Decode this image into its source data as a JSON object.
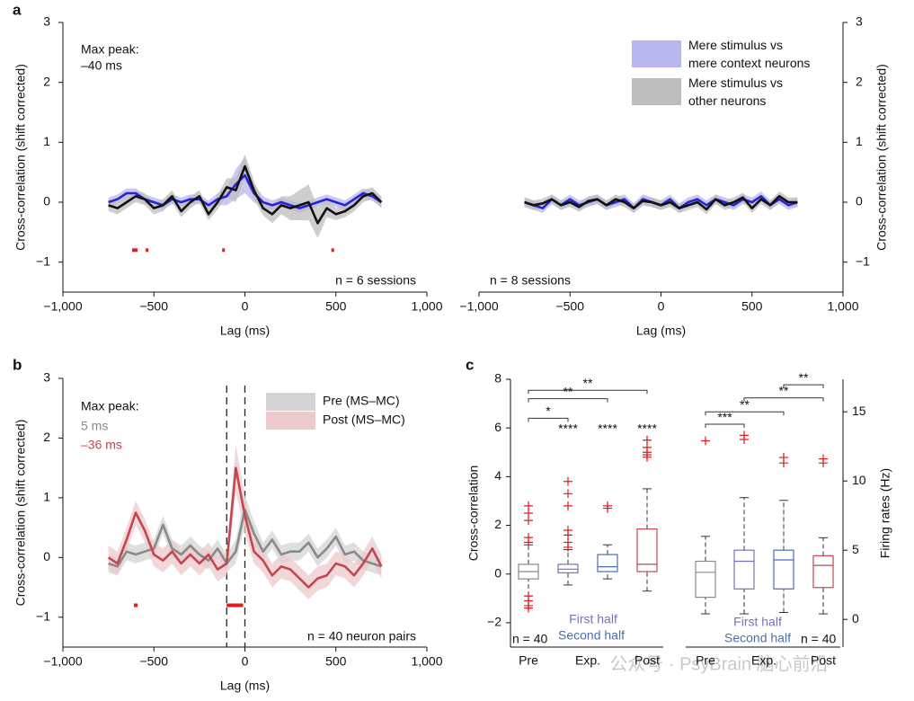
{
  "chart_data": [
    {
      "type": "line",
      "panel": "a",
      "x": [
        -750,
        -700,
        -650,
        -600,
        -550,
        -500,
        -450,
        -400,
        -350,
        -300,
        -250,
        -200,
        -150,
        -100,
        -50,
        0,
        50,
        100,
        150,
        200,
        250,
        300,
        350,
        400,
        450,
        500,
        550,
        600,
        650,
        700,
        750
      ],
      "xlim": [
        -1000,
        1000
      ],
      "xticks": [
        {
          "value": -1000,
          "label": "−1,000"
        },
        {
          "value": -500,
          "label": "−500"
        },
        0,
        500,
        {
          "value": 1000,
          "label": "1,000"
        }
      ],
      "ylim": [
        -1.5,
        3
      ],
      "yticks": [
        {
          "value": -1,
          "label": "−1"
        },
        0,
        1,
        2,
        3
      ],
      "y_axis_side": "left",
      "xlabel": "Lag (ms)",
      "ylabel": "Cross-correlation (shift corrected)",
      "series": [
        {
          "name": "Mere stimulus vs mere context neurons",
          "color": "#2424d8",
          "band_color": "#b8b8ee",
          "values": [
            0,
            0.05,
            0.15,
            0.15,
            0.05,
            0,
            -0.05,
            0.05,
            0,
            0.05,
            0.05,
            -0.05,
            0.05,
            0.1,
            0.3,
            0.45,
            0.15,
            0,
            -0.05,
            0,
            -0.05,
            -0.1,
            -0.05,
            0,
            0.05,
            0,
            -0.05,
            0.05,
            0.15,
            0.1,
            0
          ],
          "errors": [
            0.08,
            0.08,
            0.08,
            0.08,
            0.08,
            0.08,
            0.08,
            0.08,
            0.08,
            0.08,
            0.08,
            0.08,
            0.1,
            0.15,
            0.25,
            0.3,
            0.15,
            0.1,
            0.08,
            0.08,
            0.08,
            0.08,
            0.08,
            0.08,
            0.08,
            0.08,
            0.08,
            0.08,
            0.08,
            0.08,
            0.08
          ]
        },
        {
          "name": "Mere stimulus vs other neurons",
          "color": "#111111",
          "band_color": "#bdbdbd",
          "values": [
            -0.05,
            -0.1,
            0,
            0.1,
            0.05,
            -0.1,
            -0.05,
            0.1,
            -0.15,
            0,
            0.1,
            -0.2,
            0,
            0.25,
            0.2,
            0.6,
            0.2,
            -0.1,
            -0.2,
            -0.05,
            -0.1,
            -0.05,
            0,
            -0.35,
            -0.1,
            -0.2,
            -0.15,
            -0.05,
            0.1,
            0.15,
            0
          ],
          "errors": [
            0.1,
            0.1,
            0.1,
            0.1,
            0.1,
            0.1,
            0.1,
            0.1,
            0.1,
            0.1,
            0.1,
            0.1,
            0.12,
            0.15,
            0.2,
            0.2,
            0.15,
            0.12,
            0.15,
            0.15,
            0.2,
            0.25,
            0.3,
            0.25,
            0.15,
            0.1,
            0.1,
            0.1,
            0.1,
            0.1,
            0.1
          ]
        }
      ],
      "significance_y": -0.8,
      "significant_ranges": [
        [
          -620,
          -590
        ],
        [
          -545,
          -535
        ],
        [
          -125,
          -115
        ],
        [
          475,
          485
        ]
      ],
      "annotations": [
        {
          "text": "Max peak:"
        },
        {
          "text": "–40 ms"
        },
        {
          "text": "n = 6 sessions"
        }
      ]
    },
    {
      "type": "line",
      "x": [
        -750,
        -700,
        -650,
        -600,
        -550,
        -500,
        -450,
        -400,
        -350,
        -300,
        -250,
        -200,
        -150,
        -100,
        -50,
        0,
        50,
        100,
        150,
        200,
        250,
        300,
        350,
        400,
        450,
        500,
        550,
        600,
        650,
        700,
        750
      ],
      "xlim": [
        -1000,
        1000
      ],
      "xticks": [
        {
          "value": -1000,
          "label": "−1,000"
        },
        {
          "value": -500,
          "label": "−500"
        },
        0,
        500,
        {
          "value": 1000,
          "label": "1,000"
        }
      ],
      "ylim": [
        -1.5,
        3
      ],
      "yticks": [
        {
          "value": -1,
          "label": "−1"
        },
        0,
        1,
        2,
        3
      ],
      "y_axis_side": "right",
      "xlabel": "Lag (ms)",
      "ylabel": "Cross-correlation (shift corrected)",
      "series": [
        {
          "color": "#2424d8",
          "band_color": "#b8b8ee",
          "values": [
            0,
            -0.05,
            -0.1,
            0.05,
            -0.05,
            0.05,
            -0.05,
            0,
            0.05,
            -0.05,
            0,
            0.05,
            -0.1,
            0.05,
            0,
            -0.05,
            0.05,
            -0.1,
            0,
            0.05,
            -0.05,
            0.05,
            0,
            -0.05,
            0.05,
            0,
            0.1,
            -0.05,
            0.05,
            -0.05,
            0
          ],
          "errors": [
            0.08,
            0.08,
            0.08,
            0.08,
            0.08,
            0.08,
            0.08,
            0.08,
            0.08,
            0.08,
            0.08,
            0.08,
            0.08,
            0.08,
            0.08,
            0.08,
            0.08,
            0.08,
            0.08,
            0.08,
            0.08,
            0.08,
            0.08,
            0.08,
            0.08,
            0.08,
            0.08,
            0.08,
            0.08,
            0.08,
            0.08
          ]
        },
        {
          "color": "#111111",
          "band_color": "#bdbdbd",
          "values": [
            0,
            -0.05,
            -0.02,
            0.05,
            -0.05,
            0,
            -0.08,
            0.02,
            0.05,
            -0.05,
            0.05,
            0,
            -0.1,
            0.02,
            0,
            -0.05,
            0,
            -0.1,
            -0.05,
            0,
            -0.12,
            0.05,
            -0.05,
            0,
            0.08,
            -0.1,
            0.05,
            -0.05,
            0.1,
            0,
            0
          ],
          "errors": [
            0.08,
            0.08,
            0.08,
            0.08,
            0.08,
            0.08,
            0.08,
            0.08,
            0.08,
            0.08,
            0.08,
            0.08,
            0.08,
            0.08,
            0.08,
            0.08,
            0.08,
            0.08,
            0.08,
            0.08,
            0.08,
            0.08,
            0.08,
            0.08,
            0.08,
            0.08,
            0.08,
            0.08,
            0.08,
            0.08,
            0.08
          ]
        }
      ],
      "annotations": [
        {
          "text": "n = 8 sessions"
        }
      ]
    },
    {
      "type": "line",
      "panel": "b",
      "x": [
        -750,
        -700,
        -650,
        -600,
        -550,
        -500,
        -450,
        -400,
        -350,
        -300,
        -250,
        -200,
        -150,
        -100,
        -50,
        0,
        50,
        100,
        150,
        200,
        250,
        300,
        350,
        400,
        450,
        500,
        550,
        600,
        650,
        700,
        750
      ],
      "xlim": [
        -1000,
        1000
      ],
      "xticks": [
        {
          "value": -1000,
          "label": "−1,000"
        },
        {
          "value": -500,
          "label": "−500"
        },
        0,
        500,
        {
          "value": 1000,
          "label": "1,000"
        }
      ],
      "ylim": [
        -1.5,
        3
      ],
      "yticks": [
        {
          "value": -1,
          "label": "−1"
        },
        0,
        1,
        2,
        3
      ],
      "y_axis_side": "left",
      "xlabel": "Lag (ms)",
      "ylabel": "Cross-correlation (shift corrected)",
      "vlines": [
        -100,
        0
      ],
      "series": [
        {
          "name": "Pre (MS–MC)",
          "color": "#8a8a8a",
          "band_color": "#d4d4d4",
          "values": [
            -0.1,
            -0.15,
            0.1,
            0.05,
            0.1,
            0.15,
            0.55,
            0.15,
            0.05,
            0.2,
            0.05,
            -0.05,
            0.15,
            -0.1,
            0.1,
            0.8,
            0.4,
            0.1,
            0.3,
            0.05,
            0.1,
            0.1,
            0.25,
            0,
            0.15,
            0.35,
            0.05,
            0.1,
            -0.05,
            -0.1,
            -0.15
          ],
          "errors": [
            0.15,
            0.15,
            0.15,
            0.15,
            0.15,
            0.15,
            0.15,
            0.15,
            0.15,
            0.15,
            0.15,
            0.15,
            0.15,
            0.15,
            0.2,
            0.25,
            0.2,
            0.15,
            0.15,
            0.15,
            0.15,
            0.15,
            0.15,
            0.15,
            0.15,
            0.15,
            0.15,
            0.15,
            0.15,
            0.15,
            0.15
          ]
        },
        {
          "name": "Post (MS–MC)",
          "color": "#c0484f",
          "band_color": "#eccacd",
          "values": [
            0,
            -0.1,
            0.3,
            0.75,
            0.45,
            0.05,
            -0.05,
            0.1,
            -0.1,
            0.05,
            -0.1,
            0.05,
            -0.2,
            -0.1,
            1.5,
            0.7,
            0.1,
            -0.05,
            -0.3,
            -0.15,
            -0.2,
            -0.35,
            -0.5,
            -0.35,
            -0.3,
            -0.1,
            -0.15,
            -0.3,
            -0.1,
            0.15,
            -0.15
          ],
          "errors": [
            0.2,
            0.2,
            0.2,
            0.2,
            0.2,
            0.2,
            0.2,
            0.2,
            0.2,
            0.2,
            0.2,
            0.2,
            0.2,
            0.2,
            0.4,
            0.3,
            0.2,
            0.2,
            0.2,
            0.2,
            0.2,
            0.2,
            0.2,
            0.2,
            0.2,
            0.2,
            0.2,
            0.2,
            0.2,
            0.2,
            0.2
          ]
        }
      ],
      "significance_y": -0.8,
      "significant_ranges": [
        [
          -610,
          -590
        ],
        [
          -100,
          -10
        ]
      ],
      "annotations": [
        {
          "text": "Max peak:"
        },
        {
          "text": "5 ms",
          "color": "#8a8a8a"
        },
        {
          "text": "–36 ms",
          "color": "#c0484f"
        },
        {
          "text": "n = 40 neuron pairs"
        }
      ]
    },
    {
      "type": "box",
      "panel": "c",
      "ylim": [
        -3,
        8
      ],
      "yticks": [
        {
          "value": -2,
          "label": "−2"
        },
        0,
        2,
        4,
        6,
        8
      ],
      "y2lim": [
        -2,
        17.35
      ],
      "y2ticks": [
        0,
        5,
        10,
        15
      ],
      "ylabel": "Cross-correlation",
      "y2label": "Firing rates (Hz)",
      "outlier_color": "#e41a1c",
      "groups": [
        {
          "axis": "y",
          "categories": [
            "Pre",
            "Exp.",
            "Post"
          ],
          "boxes": [
            {
              "color": "#8a8a8a",
              "whisker_low": -0.9,
              "q1": -0.2,
              "median": 0.1,
              "q3": 0.4,
              "whisker_high": 1.2,
              "outliers": [
                2.8,
                2.5,
                2.2,
                1.5,
                1.3,
                -0.9,
                -1.1,
                -1.3,
                -1.4
              ]
            },
            {
              "color": "#7b70b8",
              "whisker_low": -0.45,
              "q1": 0.05,
              "median": 0.2,
              "q3": 0.4,
              "whisker_high": 1.0,
              "outliers": [
                3.8,
                3.3,
                2.8,
                1.8,
                1.6,
                1.3,
                1.1
              ],
              "significance": "****"
            },
            {
              "color": "#4a6fb0",
              "whisker_low": -0.2,
              "q1": 0.1,
              "median": 0.3,
              "q3": 0.8,
              "whisker_high": 1.2,
              "outliers": [
                2.8,
                2.7
              ],
              "significance": "****"
            },
            {
              "color": "#c0484f",
              "whisker_low": -0.7,
              "q1": 0.1,
              "median": 0.4,
              "q3": 1.85,
              "whisker_high": 3.5,
              "outliers": [
                5.5,
                5.2,
                5.0,
                4.9,
                4.8
              ],
              "significance": "****"
            }
          ],
          "brackets": [
            {
              "from": 0,
              "to": 1,
              "y": 6.4,
              "label": "*"
            },
            {
              "from": 0,
              "to": 2,
              "y": 7.2,
              "label": "**"
            },
            {
              "from": 0,
              "to": 3,
              "y": 7.55,
              "label": "**"
            }
          ]
        },
        {
          "axis": "y2",
          "categories": [
            "Pre",
            "Exp.",
            "Post"
          ],
          "boxes": [
            {
              "color": "#8a8a8a",
              "whisker_low": 0.4,
              "q1": 1.6,
              "median": 3.4,
              "q3": 4.2,
              "whisker_high": 6.0,
              "outliers": [
                12.9
              ]
            },
            {
              "color": "#7b70b8",
              "whisker_low": 0.4,
              "q1": 2.2,
              "median": 4.2,
              "q3": 5.0,
              "whisker_high": 8.8,
              "outliers": [
                13.0,
                13.3
              ]
            },
            {
              "color": "#4a6fb0",
              "whisker_low": 0.5,
              "q1": 2.2,
              "median": 4.3,
              "q3": 5.0,
              "whisker_high": 8.6,
              "outliers": [
                11.3,
                11.7
              ]
            },
            {
              "color": "#c0484f",
              "whisker_low": 0.4,
              "q1": 2.3,
              "median": 3.9,
              "q3": 4.6,
              "whisker_high": 5.9,
              "outliers": [
                11.3,
                11.6
              ]
            }
          ],
          "brackets": [
            {
              "from": 0,
              "to": 1,
              "y": 14.1,
              "label": "***"
            },
            {
              "from": 0,
              "to": 2,
              "y": 15.0,
              "label": "**"
            },
            {
              "from": 1,
              "to": 3,
              "y": 16.0,
              "label": "**"
            },
            {
              "from": 2,
              "to": 3,
              "y": 16.95,
              "label": "**"
            }
          ]
        }
      ],
      "annotations": [
        {
          "text": "n = 40"
        },
        {
          "text": "First half",
          "color": "#7b70b8"
        },
        {
          "text": "Second half",
          "color": "#4a6fb0"
        },
        {
          "text": "First half",
          "color": "#7b70b8"
        },
        {
          "text": "Second half",
          "color": "#4a6fb0"
        },
        {
          "text": "n = 40"
        }
      ]
    }
  ],
  "watermark": "公众号 · PsyBrain 脑心前沿"
}
